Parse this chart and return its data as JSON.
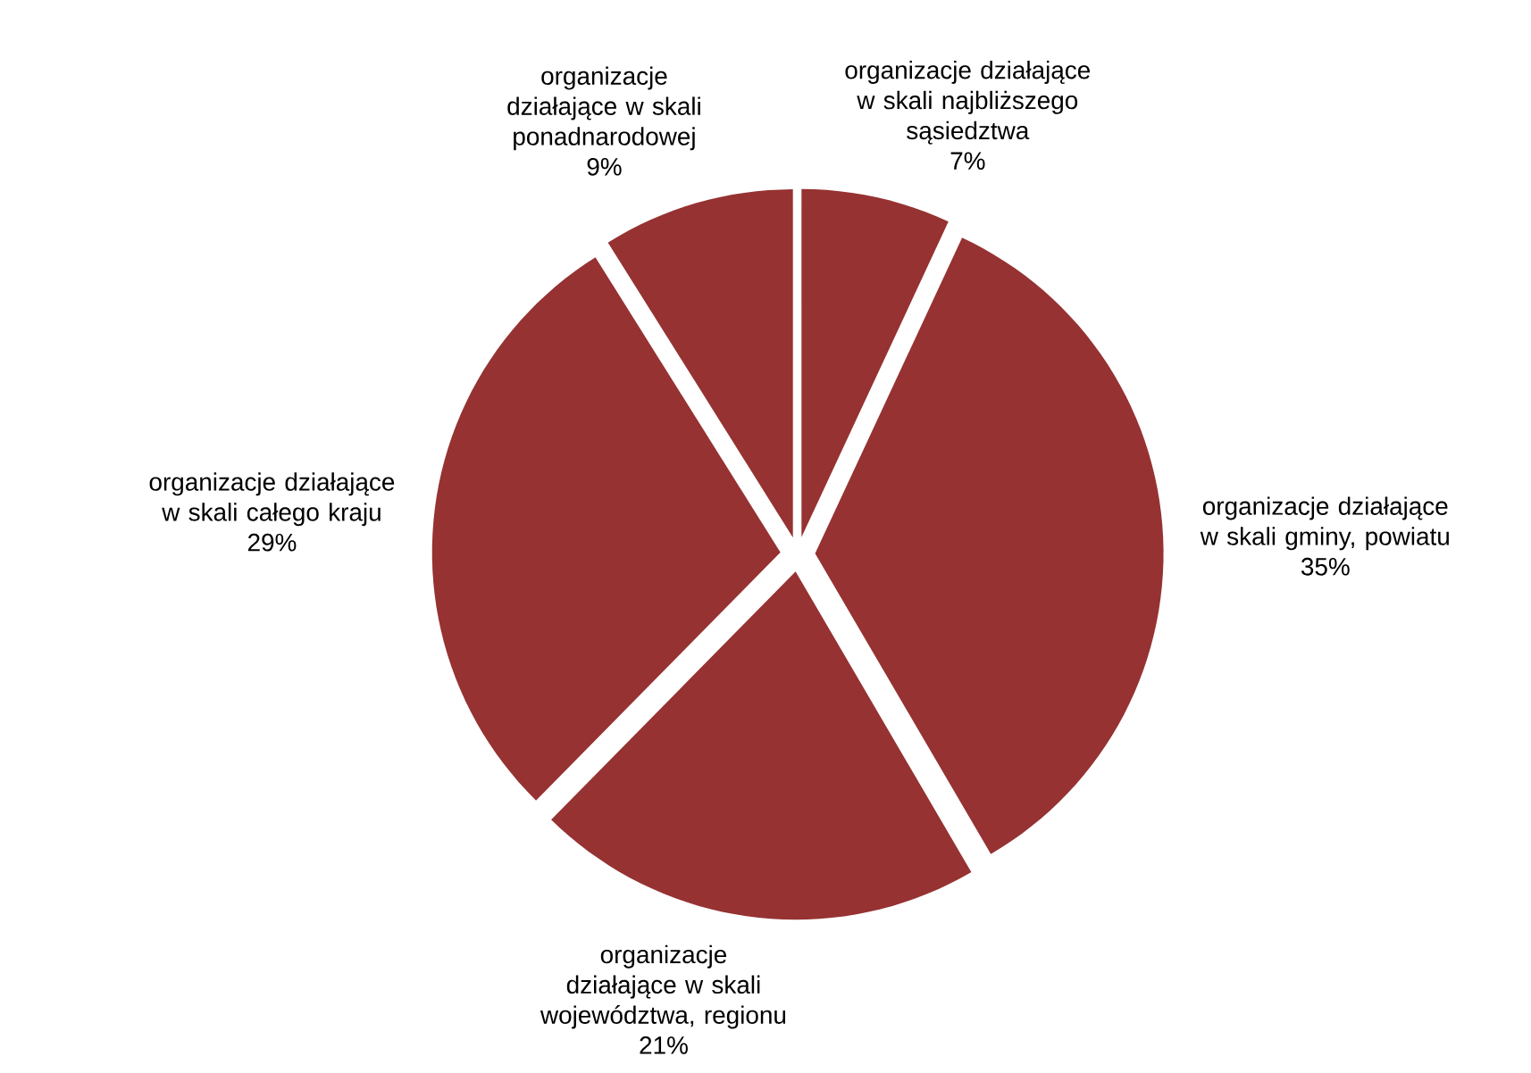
{
  "chart_data": {
    "type": "pie",
    "categories": [
      "organizacje działające w skali najbliższego sąsiedztwa",
      "organizacje działające w skali gminy, powiatu",
      "organizacje działające w skali województwa, regionu",
      "organizacje działające w skali całego kraju",
      "organizacje działające w skali ponadnarodowej"
    ],
    "values": [
      7,
      35,
      21,
      29,
      9
    ],
    "value_labels": [
      "7%",
      "35%",
      "21%",
      "29%",
      "9%"
    ],
    "colors": [
      "#963232",
      "#963232",
      "#963232",
      "#963232",
      "#963232"
    ]
  }
}
